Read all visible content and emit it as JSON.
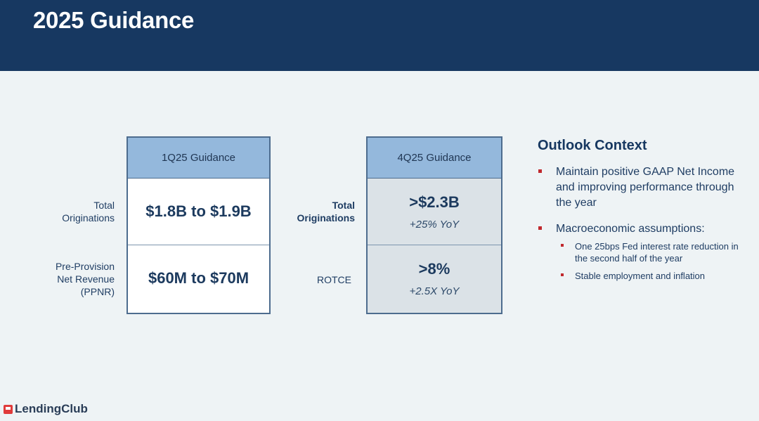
{
  "slide": {
    "title": "2025 Guidance"
  },
  "panel1": {
    "header": "1Q25 Guidance",
    "rows": [
      {
        "label_lines": [
          "Total",
          "Originations"
        ],
        "value": "$1.8B to $1.9B"
      },
      {
        "label_lines": [
          "Pre-Provision",
          "Net Revenue",
          "(PPNR)"
        ],
        "value": "$60M to $70M"
      }
    ]
  },
  "panel2": {
    "header": "4Q25 Guidance",
    "rows": [
      {
        "label_lines": [
          "Total",
          "Originations"
        ],
        "value": ">$2.3B",
        "sub": "+25% YoY"
      },
      {
        "label_lines": [
          "ROTCE"
        ],
        "value": ">8%",
        "sub": "+2.5X YoY"
      }
    ]
  },
  "outlook": {
    "title": "Outlook Context",
    "bullets": [
      "Maintain positive GAAP Net Income and improving performance through the year",
      "Macroeconomic assumptions:"
    ],
    "sub_bullets": [
      "One 25bps Fed interest rate reduction in the second half of the year",
      "Stable employment and inflation"
    ]
  },
  "footer": {
    "logo_text": "LendingClub"
  },
  "colors": {
    "header_bg": "#173861",
    "panel_head": "#94b8dc",
    "bullet_accent": "#c0282d"
  }
}
